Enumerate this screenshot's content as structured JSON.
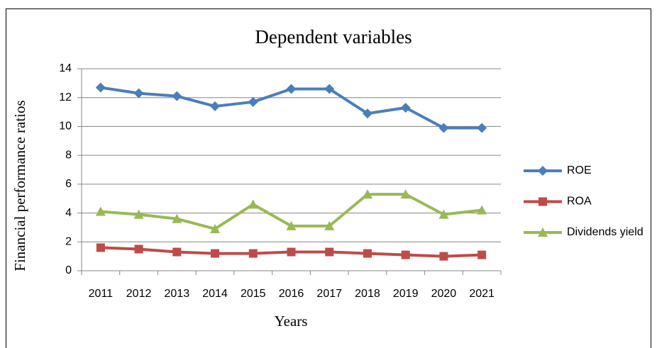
{
  "chart_data": {
    "type": "line",
    "title": "Dependent variables",
    "x_label": "Years",
    "y_label": "Financial  performance  ratios",
    "categories": [
      "2011",
      "2012",
      "2013",
      "2014",
      "2015",
      "2016",
      "2017",
      "2018",
      "2019",
      "2020",
      "2021"
    ],
    "series": [
      {
        "name": "ROE",
        "color": "#4a7ebb",
        "marker": "diamond",
        "values": [
          12.7,
          12.3,
          12.1,
          11.4,
          11.7,
          12.6,
          12.6,
          10.9,
          11.3,
          9.9,
          9.9
        ]
      },
      {
        "name": "ROA",
        "color": "#be4b48",
        "marker": "square",
        "values": [
          1.6,
          1.5,
          1.3,
          1.2,
          1.2,
          1.3,
          1.3,
          1.2,
          1.1,
          1.0,
          1.1
        ]
      },
      {
        "name": "Dividends yield",
        "color": "#98b954",
        "marker": "triangle",
        "values": [
          4.1,
          3.9,
          3.6,
          2.9,
          4.6,
          3.1,
          3.1,
          5.3,
          5.3,
          3.9,
          4.2
        ]
      }
    ],
    "ylim": [
      0,
      14
    ],
    "yticks": [
      0,
      2,
      4,
      6,
      8,
      10,
      12,
      14
    ],
    "grid": true,
    "legend": "right"
  }
}
